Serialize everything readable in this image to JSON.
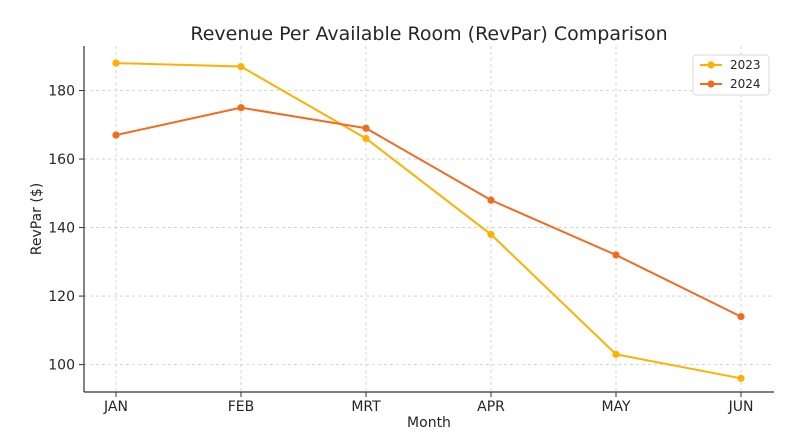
{
  "chart_data": {
    "type": "line",
    "title": "Revenue Per Available Room (RevPar) Comparison",
    "xlabel": "Month",
    "ylabel": "RevPar ($)",
    "categories": [
      "JAN",
      "FEB",
      "MRT",
      "APR",
      "MAY",
      "JUN"
    ],
    "ylim": [
      92,
      193
    ],
    "yticks": [
      100,
      120,
      140,
      160,
      180
    ],
    "grid": true,
    "legend_position": "top-right",
    "series": [
      {
        "name": "2023",
        "color": "#FFB000",
        "values": [
          188,
          187,
          166,
          138,
          103,
          96
        ]
      },
      {
        "name": "2024",
        "color": "#F26B21",
        "values": [
          167,
          175,
          169,
          148,
          132,
          114
        ]
      }
    ]
  }
}
